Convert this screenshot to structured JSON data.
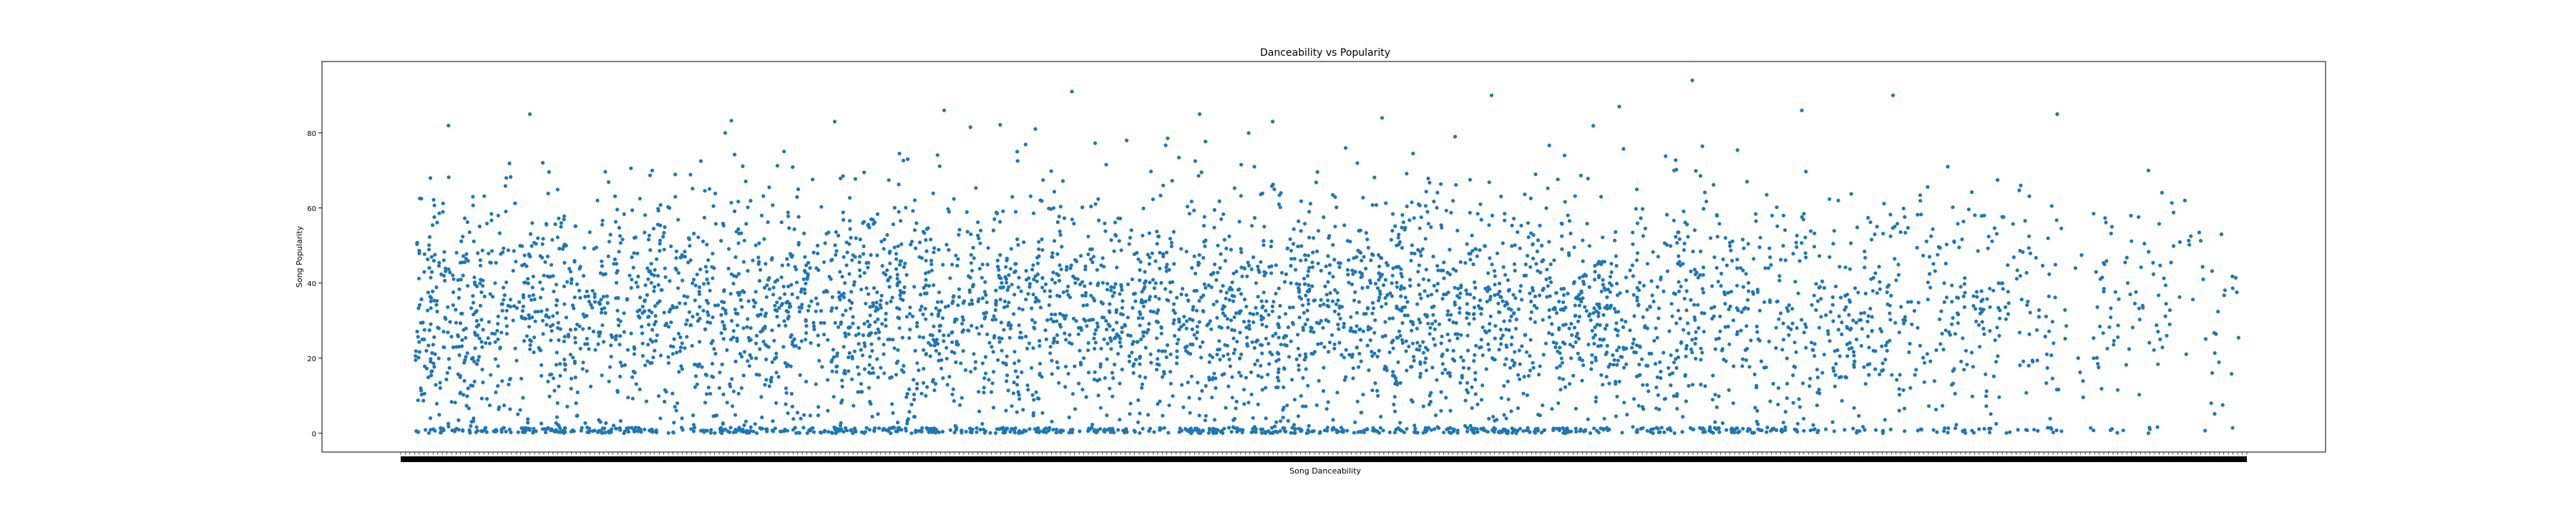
{
  "chart_data": {
    "type": "scatter",
    "title": "Danceability vs Popularity",
    "xlabel": "Song Danceability",
    "ylabel": "Song Popularity",
    "ylim": [
      -5,
      99
    ],
    "yticks": [
      0,
      20,
      40,
      60,
      80
    ],
    "xlim": [
      0.0,
      1.0
    ],
    "grid": false,
    "marker_color": "#1f77b4",
    "x_tick_note": "x tick labels are dense and overlapping (illegible)",
    "series": [
      {
        "points": [
          [
            0.05,
            68
          ],
          [
            0.06,
            45
          ],
          [
            0.07,
            30
          ],
          [
            0.08,
            55
          ],
          [
            0.09,
            38
          ],
          [
            0.1,
            62
          ],
          [
            0.11,
            25
          ],
          [
            0.12,
            48
          ],
          [
            0.13,
            70
          ],
          [
            0.14,
            33
          ],
          [
            0.15,
            52
          ],
          [
            0.16,
            41
          ],
          [
            0.17,
            80
          ],
          [
            0.18,
            28
          ],
          [
            0.19,
            58
          ],
          [
            0.2,
            36
          ],
          [
            0.21,
            65
          ],
          [
            0.22,
            44
          ],
          [
            0.23,
            83
          ],
          [
            0.24,
            31
          ],
          [
            0.25,
            57
          ],
          [
            0.26,
            39
          ],
          [
            0.27,
            73
          ],
          [
            0.28,
            46
          ],
          [
            0.29,
            86
          ],
          [
            0.3,
            27
          ],
          [
            0.31,
            54
          ],
          [
            0.32,
            42
          ],
          [
            0.33,
            75
          ],
          [
            0.34,
            35
          ],
          [
            0.35,
            60
          ],
          [
            0.36,
            91
          ],
          [
            0.37,
            49
          ],
          [
            0.38,
            29
          ],
          [
            0.39,
            78
          ],
          [
            0.4,
            43
          ],
          [
            0.41,
            66
          ],
          [
            0.42,
            37
          ],
          [
            0.43,
            85
          ],
          [
            0.44,
            50
          ],
          [
            0.45,
            32
          ],
          [
            0.46,
            71
          ],
          [
            0.47,
            83
          ],
          [
            0.48,
            40
          ],
          [
            0.49,
            59
          ],
          [
            0.5,
            34
          ],
          [
            0.51,
            76
          ],
          [
            0.52,
            47
          ],
          [
            0.53,
            84
          ],
          [
            0.54,
            26
          ],
          [
            0.55,
            61
          ],
          [
            0.56,
            38
          ],
          [
            0.57,
            79
          ],
          [
            0.58,
            45
          ],
          [
            0.59,
            90
          ],
          [
            0.6,
            30
          ],
          [
            0.61,
            56
          ],
          [
            0.62,
            41
          ],
          [
            0.63,
            74
          ],
          [
            0.64,
            36
          ],
          [
            0.65,
            63
          ],
          [
            0.66,
            87
          ],
          [
            0.67,
            48
          ],
          [
            0.68,
            28
          ],
          [
            0.69,
            70
          ],
          [
            0.7,
            94
          ],
          [
            0.71,
            52
          ],
          [
            0.72,
            33
          ],
          [
            0.73,
            67
          ],
          [
            0.74,
            44
          ],
          [
            0.75,
            58
          ],
          [
            0.76,
            86
          ],
          [
            0.77,
            39
          ],
          [
            0.78,
            62
          ],
          [
            0.79,
            25
          ],
          [
            0.8,
            53
          ],
          [
            0.81,
            90
          ],
          [
            0.82,
            35
          ],
          [
            0.83,
            47
          ],
          [
            0.84,
            71
          ],
          [
            0.85,
            22
          ],
          [
            0.86,
            58
          ],
          [
            0.87,
            40
          ],
          [
            0.88,
            66
          ],
          [
            0.89,
            31
          ],
          [
            0.9,
            85
          ],
          [
            0.91,
            44
          ],
          [
            0.92,
            20
          ],
          [
            0.93,
            55
          ],
          [
            0.94,
            37
          ],
          [
            0.95,
            70
          ],
          [
            0.96,
            26
          ],
          [
            0.97,
            62
          ],
          [
            0.98,
            41
          ],
          [
            0.99,
            53
          ]
        ]
      }
    ]
  }
}
